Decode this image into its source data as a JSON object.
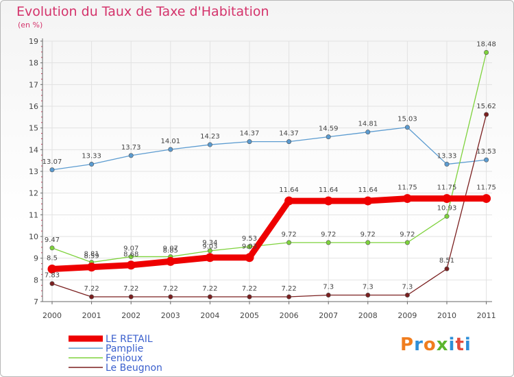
{
  "title": "Evolution du Taux de Taxe d'Habitation",
  "subtitle": "(en %)",
  "logo": {
    "text": "Proxiti",
    "letters": [
      "P",
      "r",
      "o",
      "x",
      "i",
      "t",
      "i"
    ],
    "colors": [
      "#f07d1e",
      "#2e8fd8",
      "#f07d1e",
      "#5bb52e",
      "#2e8fd8",
      "#e24b3b",
      "#2e8fd8"
    ]
  },
  "chart_data": {
    "type": "line",
    "title": "Evolution du Taux de Taxe d'Habitation",
    "ylabel": "(en %)",
    "xlabel": "",
    "categories": [
      "2000",
      "2001",
      "2002",
      "2003",
      "2004",
      "2005",
      "2006",
      "2007",
      "2008",
      "2009",
      "2010",
      "2011"
    ],
    "ylim": [
      7,
      19
    ],
    "yticks": [
      "7",
      "8",
      "9",
      "10",
      "11",
      "12",
      "13",
      "14",
      "15",
      "16",
      "17",
      "18",
      "19"
    ],
    "grid": true,
    "legend": "bottom-left",
    "series": [
      {
        "name": "LE RETAIL",
        "color": "#ee0000",
        "values": [
          8.5,
          8.59,
          8.68,
          8.85,
          9.03,
          9.03,
          11.64,
          11.64,
          11.64,
          11.75,
          11.75,
          11.75
        ],
        "labels": [
          "8.5",
          "8.59",
          "8.68",
          "8.85",
          "9.03",
          "9.03",
          "11.64",
          "11.64",
          "11.64",
          "11.75",
          "11.75",
          "11.75"
        ],
        "bold": true
      },
      {
        "name": "Pamplie",
        "color": "#5b9bd0",
        "values": [
          13.07,
          13.33,
          13.73,
          14.01,
          14.23,
          14.37,
          14.37,
          14.59,
          14.81,
          15.03,
          13.33,
          13.53
        ],
        "labels": [
          "13.07",
          "13.33",
          "13.73",
          "14.01",
          "14.23",
          "14.37",
          "14.37",
          "14.59",
          "14.81",
          "15.03",
          "13.33",
          "13.53"
        ],
        "bold": false
      },
      {
        "name": "Fenioux",
        "color": "#7ed23c",
        "values": [
          9.47,
          8.81,
          9.07,
          9.07,
          9.34,
          9.53,
          9.72,
          9.72,
          9.72,
          9.72,
          10.93,
          18.48
        ],
        "labels": [
          "9.47",
          "8.81",
          "9.07",
          "9.07",
          "9.34",
          "9.53",
          "9.72",
          "9.72",
          "9.72",
          "9.72",
          "10.93",
          "18.48"
        ],
        "bold": false
      },
      {
        "name": "Le Beugnon",
        "color": "#7a1f1f",
        "values": [
          7.83,
          7.22,
          7.22,
          7.22,
          7.22,
          7.22,
          7.22,
          7.3,
          7.3,
          7.3,
          8.51,
          15.62
        ],
        "labels": [
          "7.83",
          "7.22",
          "7.22",
          "7.22",
          "7.22",
          "7.22",
          "7.22",
          "7.3",
          "7.3",
          "7.3",
          "8.51",
          "15.62"
        ],
        "bold": false
      }
    ]
  }
}
